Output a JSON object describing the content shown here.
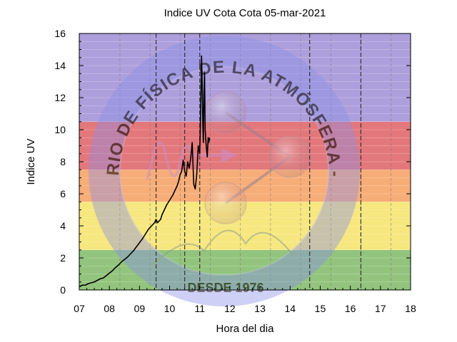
{
  "chart_data": {
    "type": "line",
    "title": "Indice UV Cota Cota 05-mar-2021",
    "xlabel": "Hora del dia",
    "ylabel": "Indice UV",
    "xlim": [
      7,
      18
    ],
    "ylim": [
      0,
      16
    ],
    "x_tick_labels": [
      "07",
      "08",
      "09",
      "10",
      "11",
      "12",
      "13",
      "14",
      "15",
      "16",
      "17",
      "18"
    ],
    "y_ticks": [
      0,
      2,
      4,
      6,
      8,
      10,
      12,
      14,
      16
    ],
    "grid": true,
    "risk_bands": [
      {
        "from": 0,
        "to": 2.5,
        "color": "#92c47d"
      },
      {
        "from": 2.5,
        "to": 5.5,
        "color": "#f6e77f"
      },
      {
        "from": 5.5,
        "to": 7.5,
        "color": "#f7ad77"
      },
      {
        "from": 7.5,
        "to": 10.5,
        "color": "#e3787c"
      },
      {
        "from": 10.5,
        "to": 16,
        "color": "#ad9fdc"
      }
    ],
    "dashed_vlines": [
      9.55,
      10.5,
      11.0,
      14.65,
      16.35
    ],
    "series": [
      {
        "color": "#000000",
        "x": [
          7.0,
          7.1,
          7.2,
          7.3,
          7.4,
          7.5,
          7.6,
          7.7,
          7.8,
          7.9,
          8.0,
          8.1,
          8.2,
          8.3,
          8.4,
          8.5,
          8.6,
          8.7,
          8.8,
          8.9,
          9.0,
          9.1,
          9.2,
          9.3,
          9.4,
          9.5,
          9.55,
          9.6,
          9.7,
          9.75,
          9.8,
          9.9,
          10.0,
          10.1,
          10.2,
          10.25,
          10.3,
          10.35,
          10.4,
          10.45,
          10.5,
          10.55,
          10.6,
          10.65,
          10.7,
          10.75,
          10.8,
          10.85,
          10.9,
          10.95,
          11.0,
          11.03,
          11.06,
          11.08,
          11.1,
          11.12,
          11.14,
          11.16,
          11.18,
          11.2,
          11.22,
          11.25,
          11.28,
          11.3,
          11.33
        ],
        "values": [
          0.2,
          0.3,
          0.3,
          0.4,
          0.45,
          0.5,
          0.6,
          0.7,
          0.75,
          0.9,
          1.05,
          1.2,
          1.4,
          1.55,
          1.75,
          1.9,
          2.05,
          2.25,
          2.45,
          2.7,
          2.95,
          3.2,
          3.5,
          3.8,
          4.0,
          4.2,
          4.4,
          4.2,
          4.4,
          4.7,
          4.9,
          5.3,
          5.6,
          5.9,
          6.3,
          6.5,
          6.8,
          7.2,
          7.4,
          8.1,
          7.4,
          7.1,
          8.0,
          7.6,
          8.2,
          9.2,
          6.6,
          6.3,
          7.2,
          9.0,
          8.5,
          11.1,
          14.6,
          13.0,
          10.6,
          9.2,
          12.3,
          13.6,
          10.0,
          9.4,
          8.9,
          8.3,
          9.5,
          9.2,
          9.5
        ]
      }
    ],
    "watermark": {
      "text": "LABORATORIO DE FÍSICA DE LA ATMÓSFERA - IIF - UMSA",
      "bottom_text": "DESDE 1976"
    }
  }
}
